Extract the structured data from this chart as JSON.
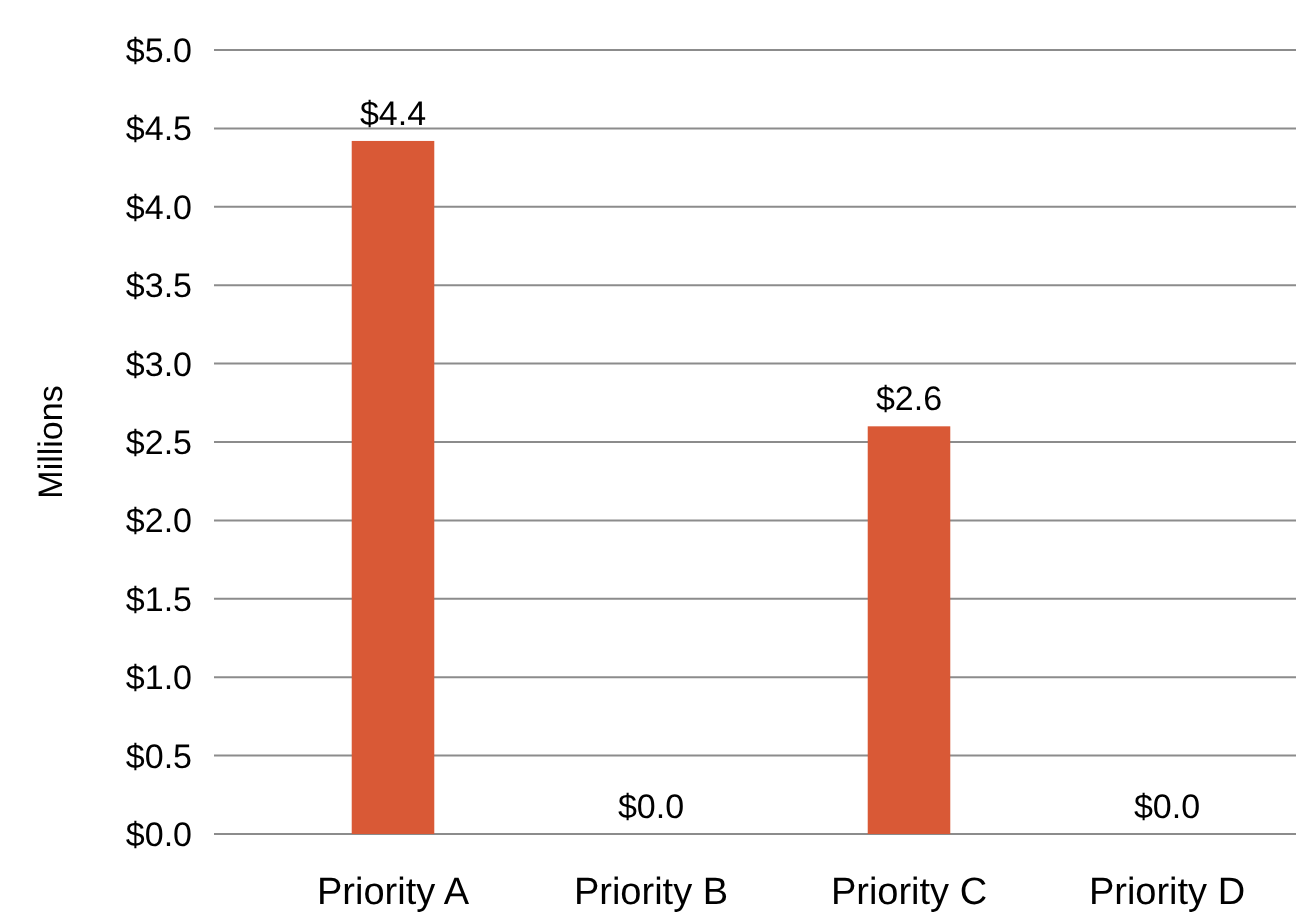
{
  "chart_data": {
    "type": "bar",
    "ylabel": "Millions",
    "categories": [
      "Priority A",
      "Priority B",
      "Priority C",
      "Priority D"
    ],
    "values": [
      4.42,
      0,
      2.6,
      0
    ],
    "color": "#d95936",
    "value_labels": [
      "$4.4",
      "$0.0",
      "$2.6",
      "$0.0"
    ],
    "ylim": [
      0,
      5
    ],
    "yticks": [
      {
        "value": 0,
        "label": "$0.0"
      },
      {
        "value": 0.5,
        "label": "$0.5"
      },
      {
        "value": 1,
        "label": "$1.0"
      },
      {
        "value": 1.5,
        "label": "$1.5"
      },
      {
        "value": 2,
        "label": "$2.0"
      },
      {
        "value": 2.5,
        "label": "$2.5"
      },
      {
        "value": 3,
        "label": "$3.0"
      },
      {
        "value": 3.5,
        "label": "$3.5"
      },
      {
        "value": 4,
        "label": "$4.0"
      },
      {
        "value": 4.5,
        "label": "$4.5"
      },
      {
        "value": 5,
        "label": "$5.0"
      }
    ],
    "grid": "y"
  }
}
